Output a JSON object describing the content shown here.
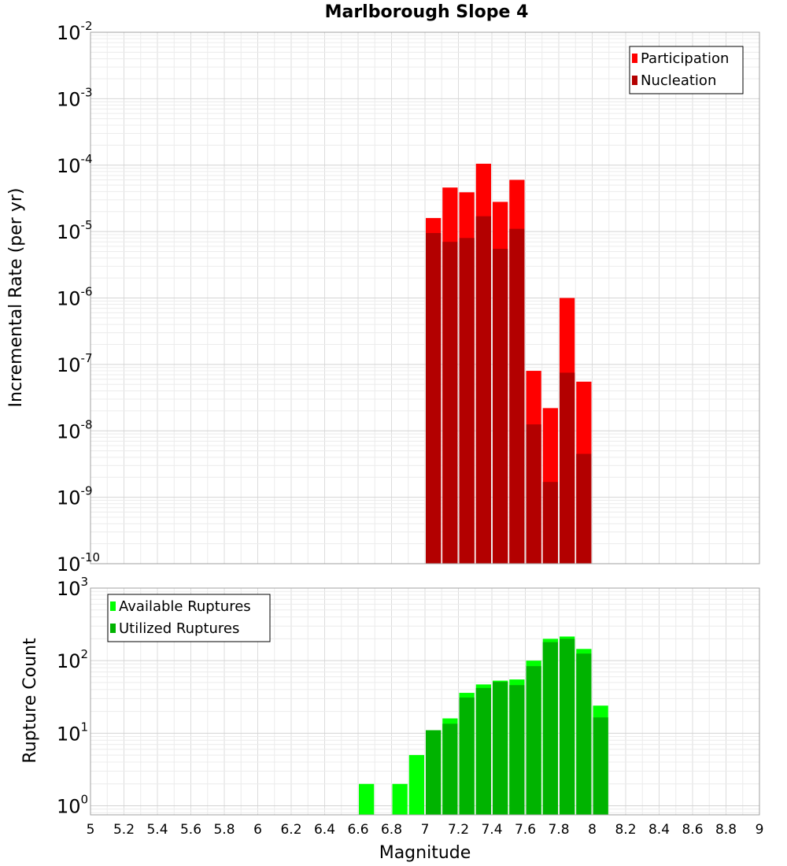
{
  "chart_data": [
    {
      "type": "bar",
      "title": "Marlborough Slope 4",
      "ylabel": "Incremental Rate (per yr)",
      "xlabel": "",
      "ylog": true,
      "xlim": [
        5,
        9
      ],
      "ylim": [
        1e-10,
        0.01
      ],
      "y_ticks": [
        {
          "base": "10",
          "exp": "-2"
        },
        {
          "base": "10",
          "exp": "-3"
        },
        {
          "base": "10",
          "exp": "-4"
        },
        {
          "base": "10",
          "exp": "-5"
        },
        {
          "base": "10",
          "exp": "-6"
        },
        {
          "base": "10",
          "exp": "-7"
        },
        {
          "base": "10",
          "exp": "-8"
        },
        {
          "base": "10",
          "exp": "-9"
        },
        {
          "base": "10",
          "exp": "-10"
        }
      ],
      "grid": true,
      "legend_position": "top-right",
      "bar_width": 0.1,
      "series": [
        {
          "name": "Participation",
          "color": "#ff0000",
          "x": [
            7.05,
            7.15,
            7.25,
            7.35,
            7.45,
            7.55,
            7.65,
            7.75,
            7.85,
            7.95
          ],
          "values": [
            1.6e-05,
            4.6e-05,
            3.9e-05,
            0.000105,
            2.8e-05,
            6e-05,
            8e-08,
            2.2e-08,
            1e-06,
            5.5e-08
          ]
        },
        {
          "name": "Nucleation",
          "color": "#b30000",
          "x": [
            7.05,
            7.15,
            7.25,
            7.35,
            7.45,
            7.55,
            7.65,
            7.75,
            7.85,
            7.95
          ],
          "values": [
            9.5e-06,
            7e-06,
            8e-06,
            1.7e-05,
            5.5e-06,
            1.1e-05,
            1.25e-08,
            1.7e-09,
            7.5e-08,
            4.5e-09
          ]
        }
      ]
    },
    {
      "type": "bar",
      "title": "",
      "ylabel": "Rupture Count",
      "xlabel": "Magnitude",
      "ylog": true,
      "xlim": [
        5,
        9
      ],
      "ylim": [
        0.75,
        1000
      ],
      "y_ticks": [
        {
          "base": "10",
          "exp": "3",
          "value": 1000
        },
        {
          "base": "10",
          "exp": "2",
          "value": 100
        },
        {
          "base": "10",
          "exp": "1",
          "value": 10
        },
        {
          "base": "10",
          "exp": "0",
          "value": 1
        }
      ],
      "x_ticks": [
        "5",
        "5.2",
        "5.4",
        "5.6",
        "5.8",
        "6",
        "6.2",
        "6.4",
        "6.6",
        "6.8",
        "7",
        "7.2",
        "7.4",
        "7.6",
        "7.8",
        "8",
        "8.2",
        "8.4",
        "8.6",
        "8.8",
        "9"
      ],
      "grid": true,
      "legend_position": "top-left",
      "bar_width": 0.1,
      "series": [
        {
          "name": "Available Ruptures",
          "color": "#00ff00",
          "x": [
            6.65,
            6.85,
            6.95,
            7.05,
            7.15,
            7.25,
            7.35,
            7.45,
            7.55,
            7.65,
            7.75,
            7.85,
            7.95,
            8.05
          ],
          "values": [
            2,
            2,
            5,
            11,
            16,
            36,
            47,
            53,
            55,
            100,
            200,
            215,
            145,
            24
          ]
        },
        {
          "name": "Utilized Ruptures",
          "color": "#00b300",
          "x": [
            7.05,
            7.15,
            7.25,
            7.35,
            7.45,
            7.55,
            7.65,
            7.75,
            7.85,
            7.95,
            8.05
          ],
          "values": [
            11,
            13.5,
            31,
            42,
            51,
            46,
            84,
            180,
            200,
            125,
            16.5
          ]
        }
      ]
    }
  ]
}
